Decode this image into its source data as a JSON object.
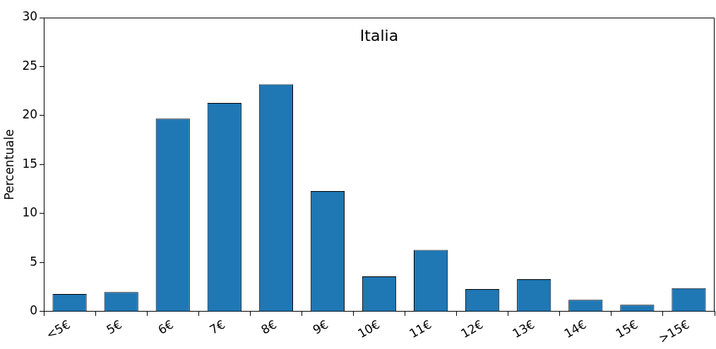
{
  "chart_data": {
    "type": "bar",
    "title": "Italia",
    "ylabel": "Percentuale",
    "categories": [
      "<5€",
      "5€",
      "6€",
      "7€",
      "8€",
      "9€",
      "10€",
      "11€",
      "12€",
      "13€",
      "14€",
      "15€",
      ">15€"
    ],
    "values": [
      1.8,
      2.0,
      19.7,
      21.3,
      23.2,
      12.3,
      3.6,
      6.3,
      2.3,
      3.3,
      1.2,
      0.7,
      2.4
    ],
    "color": "#1f77b4",
    "ylim": [
      0,
      30
    ],
    "yticks": [
      0,
      5,
      10,
      15,
      20,
      25,
      30
    ]
  }
}
